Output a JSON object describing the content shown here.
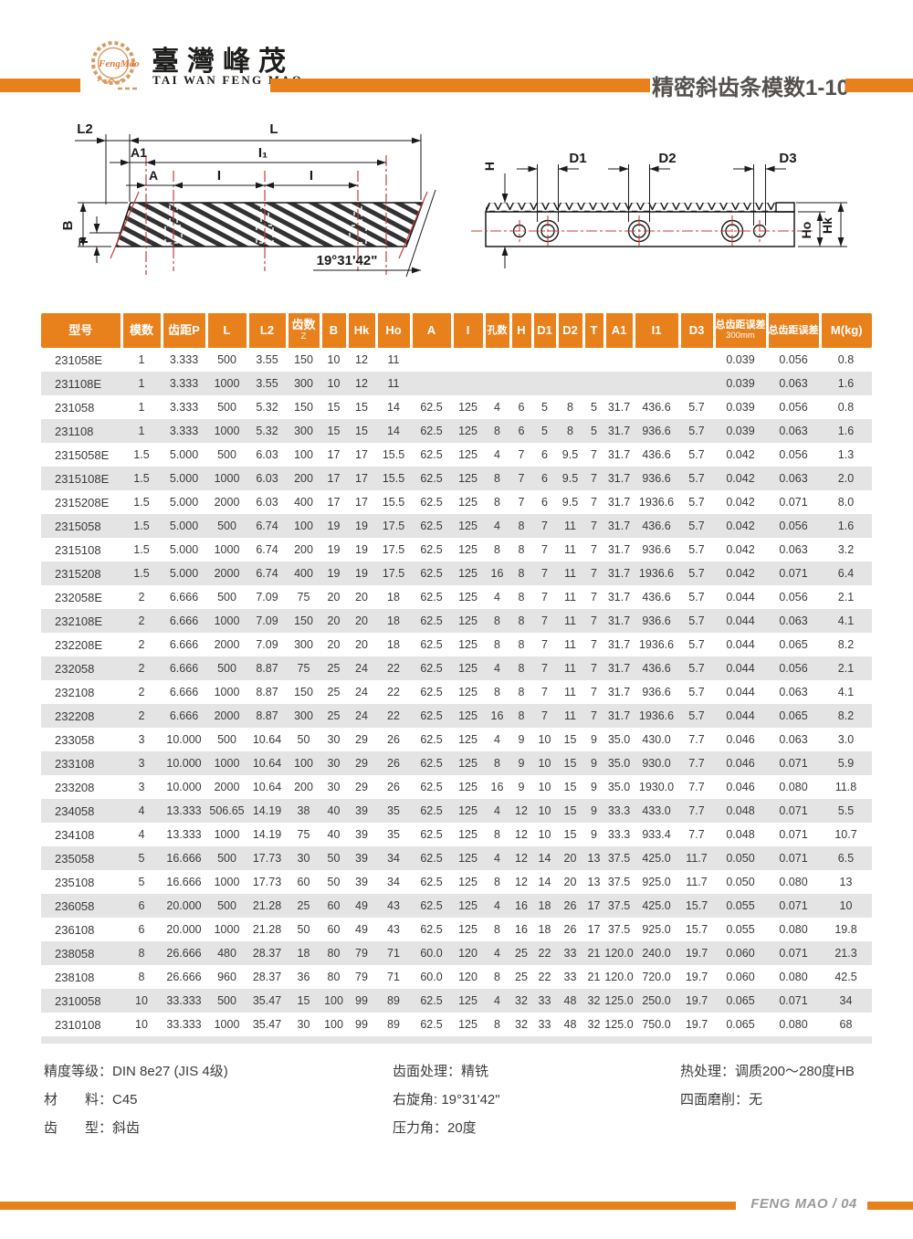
{
  "colors": {
    "accent": "#E8811C",
    "stripe": "#E4E4E4"
  },
  "header": {
    "logo_script": "FengMao",
    "company_cn": "臺灣峰茂",
    "company_en": "TAI WAN FENG MAO",
    "page_title": "精密斜齿条模数1-10"
  },
  "drawing": {
    "left": {
      "l2": "L2",
      "l": "L",
      "a1": "A1",
      "i1": "I₁",
      "a": "A",
      "i": "I",
      "b": "B",
      "t": "T",
      "angle": "19°31'42\""
    },
    "right": {
      "h": "H",
      "d1": "D1",
      "d2": "D2",
      "d3": "D3",
      "ho": "Ho",
      "hk": "Hk"
    }
  },
  "table": {
    "headers": [
      {
        "label": "型号"
      },
      {
        "label": "模数"
      },
      {
        "label": "齿距P"
      },
      {
        "label": "L"
      },
      {
        "label": "L2"
      },
      {
        "label": "齿数",
        "sub": "Z"
      },
      {
        "label": "B"
      },
      {
        "label": "Hk"
      },
      {
        "label": "Ho"
      },
      {
        "label": "A"
      },
      {
        "label": "I"
      },
      {
        "label": "孔数"
      },
      {
        "label": "H"
      },
      {
        "label": "D1"
      },
      {
        "label": "D2"
      },
      {
        "label": "T"
      },
      {
        "label": "A1"
      },
      {
        "label": "I1"
      },
      {
        "label": "D3"
      },
      {
        "label": "总齿距误差",
        "sub": "300mm"
      },
      {
        "label": "总齿距误差"
      },
      {
        "label": "M(kg)"
      }
    ],
    "rows": [
      [
        "231058E",
        "1",
        "3.333",
        "500",
        "3.55",
        "150",
        "10",
        "12",
        "11",
        "",
        "",
        "",
        "",
        "",
        "",
        "",
        "",
        "",
        "",
        "0.039",
        "0.056",
        "0.8"
      ],
      [
        "231108E",
        "1",
        "3.333",
        "1000",
        "3.55",
        "300",
        "10",
        "12",
        "11",
        "",
        "",
        "",
        "",
        "",
        "",
        "",
        "",
        "",
        "",
        "0.039",
        "0.063",
        "1.6"
      ],
      [
        "231058",
        "1",
        "3.333",
        "500",
        "5.32",
        "150",
        "15",
        "15",
        "14",
        "62.5",
        "125",
        "4",
        "6",
        "5",
        "8",
        "5",
        "31.7",
        "436.6",
        "5.7",
        "0.039",
        "0.056",
        "0.8"
      ],
      [
        "231108",
        "1",
        "3.333",
        "1000",
        "5.32",
        "300",
        "15",
        "15",
        "14",
        "62.5",
        "125",
        "8",
        "6",
        "5",
        "8",
        "5",
        "31.7",
        "936.6",
        "5.7",
        "0.039",
        "0.063",
        "1.6"
      ],
      [
        "2315058E",
        "1.5",
        "5.000",
        "500",
        "6.03",
        "100",
        "17",
        "17",
        "15.5",
        "62.5",
        "125",
        "4",
        "7",
        "6",
        "9.5",
        "7",
        "31.7",
        "436.6",
        "5.7",
        "0.042",
        "0.056",
        "1.3"
      ],
      [
        "2315108E",
        "1.5",
        "5.000",
        "1000",
        "6.03",
        "200",
        "17",
        "17",
        "15.5",
        "62.5",
        "125",
        "8",
        "7",
        "6",
        "9.5",
        "7",
        "31.7",
        "936.6",
        "5.7",
        "0.042",
        "0.063",
        "2.0"
      ],
      [
        "2315208E",
        "1.5",
        "5.000",
        "2000",
        "6.03",
        "400",
        "17",
        "17",
        "15.5",
        "62.5",
        "125",
        "8",
        "7",
        "6",
        "9.5",
        "7",
        "31.7",
        "1936.6",
        "5.7",
        "0.042",
        "0.071",
        "8.0"
      ],
      [
        "2315058",
        "1.5",
        "5.000",
        "500",
        "6.74",
        "100",
        "19",
        "19",
        "17.5",
        "62.5",
        "125",
        "4",
        "8",
        "7",
        "11",
        "7",
        "31.7",
        "436.6",
        "5.7",
        "0.042",
        "0.056",
        "1.6"
      ],
      [
        "2315108",
        "1.5",
        "5.000",
        "1000",
        "6.74",
        "200",
        "19",
        "19",
        "17.5",
        "62.5",
        "125",
        "8",
        "8",
        "7",
        "11",
        "7",
        "31.7",
        "936.6",
        "5.7",
        "0.042",
        "0.063",
        "3.2"
      ],
      [
        "2315208",
        "1.5",
        "5.000",
        "2000",
        "6.74",
        "400",
        "19",
        "19",
        "17.5",
        "62.5",
        "125",
        "16",
        "8",
        "7",
        "11",
        "7",
        "31.7",
        "1936.6",
        "5.7",
        "0.042",
        "0.071",
        "6.4"
      ],
      [
        "232058E",
        "2",
        "6.666",
        "500",
        "7.09",
        "75",
        "20",
        "20",
        "18",
        "62.5",
        "125",
        "4",
        "8",
        "7",
        "11",
        "7",
        "31.7",
        "436.6",
        "5.7",
        "0.044",
        "0.056",
        "2.1"
      ],
      [
        "232108E",
        "2",
        "6.666",
        "1000",
        "7.09",
        "150",
        "20",
        "20",
        "18",
        "62.5",
        "125",
        "8",
        "8",
        "7",
        "11",
        "7",
        "31.7",
        "936.6",
        "5.7",
        "0.044",
        "0.063",
        "4.1"
      ],
      [
        "232208E",
        "2",
        "6.666",
        "2000",
        "7.09",
        "300",
        "20",
        "20",
        "18",
        "62.5",
        "125",
        "8",
        "8",
        "7",
        "11",
        "7",
        "31.7",
        "1936.6",
        "5.7",
        "0.044",
        "0.065",
        "8.2"
      ],
      [
        "232058",
        "2",
        "6.666",
        "500",
        "8.87",
        "75",
        "25",
        "24",
        "22",
        "62.5",
        "125",
        "4",
        "8",
        "7",
        "11",
        "7",
        "31.7",
        "436.6",
        "5.7",
        "0.044",
        "0.056",
        "2.1"
      ],
      [
        "232108",
        "2",
        "6.666",
        "1000",
        "8.87",
        "150",
        "25",
        "24",
        "22",
        "62.5",
        "125",
        "8",
        "8",
        "7",
        "11",
        "7",
        "31.7",
        "936.6",
        "5.7",
        "0.044",
        "0.063",
        "4.1"
      ],
      [
        "232208",
        "2",
        "6.666",
        "2000",
        "8.87",
        "300",
        "25",
        "24",
        "22",
        "62.5",
        "125",
        "16",
        "8",
        "7",
        "11",
        "7",
        "31.7",
        "1936.6",
        "5.7",
        "0.044",
        "0.065",
        "8.2"
      ],
      [
        "233058",
        "3",
        "10.000",
        "500",
        "10.64",
        "50",
        "30",
        "29",
        "26",
        "62.5",
        "125",
        "4",
        "9",
        "10",
        "15",
        "9",
        "35.0",
        "430.0",
        "7.7",
        "0.046",
        "0.063",
        "3.0"
      ],
      [
        "233108",
        "3",
        "10.000",
        "1000",
        "10.64",
        "100",
        "30",
        "29",
        "26",
        "62.5",
        "125",
        "8",
        "9",
        "10",
        "15",
        "9",
        "35.0",
        "930.0",
        "7.7",
        "0.046",
        "0.071",
        "5.9"
      ],
      [
        "233208",
        "3",
        "10.000",
        "2000",
        "10.64",
        "200",
        "30",
        "29",
        "26",
        "62.5",
        "125",
        "16",
        "9",
        "10",
        "15",
        "9",
        "35.0",
        "1930.0",
        "7.7",
        "0.046",
        "0.080",
        "11.8"
      ],
      [
        "234058",
        "4",
        "13.333",
        "506.65",
        "14.19",
        "38",
        "40",
        "39",
        "35",
        "62.5",
        "125",
        "4",
        "12",
        "10",
        "15",
        "9",
        "33.3",
        "433.0",
        "7.7",
        "0.048",
        "0.071",
        "5.5"
      ],
      [
        "234108",
        "4",
        "13.333",
        "1000",
        "14.19",
        "75",
        "40",
        "39",
        "35",
        "62.5",
        "125",
        "8",
        "12",
        "10",
        "15",
        "9",
        "33.3",
        "933.4",
        "7.7",
        "0.048",
        "0.071",
        "10.7"
      ],
      [
        "235058",
        "5",
        "16.666",
        "500",
        "17.73",
        "30",
        "50",
        "39",
        "34",
        "62.5",
        "125",
        "4",
        "12",
        "14",
        "20",
        "13",
        "37.5",
        "425.0",
        "11.7",
        "0.050",
        "0.071",
        "6.5"
      ],
      [
        "235108",
        "5",
        "16.666",
        "1000",
        "17.73",
        "60",
        "50",
        "39",
        "34",
        "62.5",
        "125",
        "8",
        "12",
        "14",
        "20",
        "13",
        "37.5",
        "925.0",
        "11.7",
        "0.050",
        "0.080",
        "13"
      ],
      [
        "236058",
        "6",
        "20.000",
        "500",
        "21.28",
        "25",
        "60",
        "49",
        "43",
        "62.5",
        "125",
        "4",
        "16",
        "18",
        "26",
        "17",
        "37.5",
        "425.0",
        "15.7",
        "0.055",
        "0.071",
        "10"
      ],
      [
        "236108",
        "6",
        "20.000",
        "1000",
        "21.28",
        "50",
        "60",
        "49",
        "43",
        "62.5",
        "125",
        "8",
        "16",
        "18",
        "26",
        "17",
        "37.5",
        "925.0",
        "15.7",
        "0.055",
        "0.080",
        "19.8"
      ],
      [
        "238058",
        "8",
        "26.666",
        "480",
        "28.37",
        "18",
        "80",
        "79",
        "71",
        "60.0",
        "120",
        "4",
        "25",
        "22",
        "33",
        "21",
        "120.0",
        "240.0",
        "19.7",
        "0.060",
        "0.071",
        "21.3"
      ],
      [
        "238108",
        "8",
        "26.666",
        "960",
        "28.37",
        "36",
        "80",
        "79",
        "71",
        "60.0",
        "120",
        "8",
        "25",
        "22",
        "33",
        "21",
        "120.0",
        "720.0",
        "19.7",
        "0.060",
        "0.080",
        "42.5"
      ],
      [
        "2310058",
        "10",
        "33.333",
        "500",
        "35.47",
        "15",
        "100",
        "99",
        "89",
        "62.5",
        "125",
        "4",
        "32",
        "33",
        "48",
        "32",
        "125.0",
        "250.0",
        "19.7",
        "0.065",
        "0.071",
        "34"
      ],
      [
        "2310108",
        "10",
        "33.333",
        "1000",
        "35.47",
        "30",
        "100",
        "99",
        "89",
        "62.5",
        "125",
        "8",
        "32",
        "33",
        "48",
        "32",
        "125.0",
        "750.0",
        "19.7",
        "0.065",
        "0.080",
        "68"
      ]
    ]
  },
  "notes": {
    "col1": [
      "精度等级：DIN 8e27 (JIS 4级)",
      "材　　料：C45",
      "齿　　型：斜齿"
    ],
    "col2": [
      "齿面处理：精铣",
      "右旋角:  19°31'42\"",
      "压力角：20度"
    ],
    "col3": [
      "热处理：调质200～280度HB",
      "四面磨削：无"
    ]
  },
  "footer": {
    "page_label": "FENG MAO / 04"
  }
}
